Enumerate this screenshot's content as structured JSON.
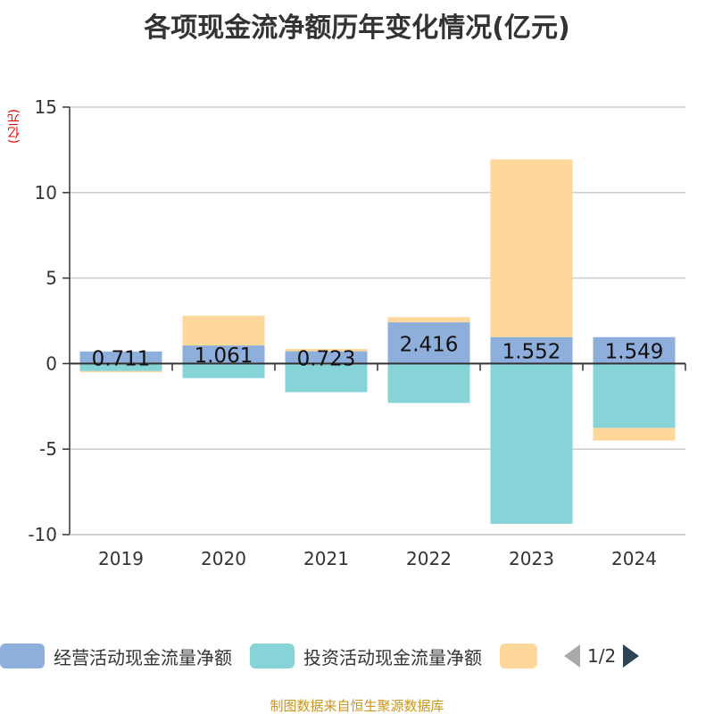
{
  "title": "各项现金流净额历年变化情况(亿元)",
  "unit": "(亿元)",
  "footer": "制图数据来自恒生聚源数据库",
  "legend": {
    "page": "1/2"
  },
  "chart_data": {
    "type": "bar",
    "stacked": true,
    "categories": [
      "2019",
      "2020",
      "2021",
      "2022",
      "2023",
      "2024"
    ],
    "ylim": [
      -10,
      15
    ],
    "yticks": [
      "-10",
      "-5",
      "0",
      "5",
      "10",
      "15"
    ],
    "grid": true,
    "legend_placement": "bottom",
    "series": [
      {
        "name": "经营活动现金流量净额",
        "color": "#8eaedb",
        "values": [
          0.711,
          1.061,
          0.723,
          2.416,
          1.552,
          1.549
        ],
        "labels": [
          "0.711",
          "1.061",
          "0.723",
          "2.416",
          "1.552",
          "1.549"
        ]
      },
      {
        "name": "投资活动现金流量净额",
        "color": "#87d4d8",
        "values": [
          -0.44,
          -0.85,
          -1.67,
          -2.3,
          -9.37,
          -3.76
        ]
      },
      {
        "color": "#fed89b",
        "values": [
          -0.06,
          1.74,
          0.13,
          0.3,
          10.39,
          -0.74
        ]
      }
    ]
  }
}
